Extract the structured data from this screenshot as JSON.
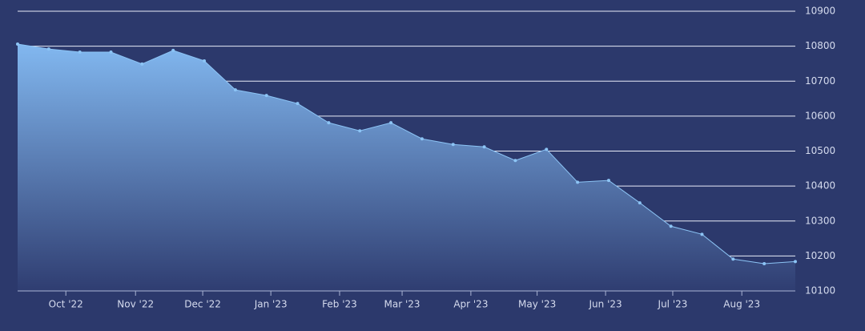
{
  "chart_data": {
    "type": "area",
    "x": [
      0,
      1,
      2,
      3,
      4,
      5,
      6,
      7,
      8,
      9,
      10,
      11,
      12,
      13,
      14,
      15,
      16,
      17,
      18,
      19,
      20,
      21,
      22,
      23,
      24,
      25
    ],
    "series": [
      {
        "color": "#8cc4f5",
        "fill_top": "#82b8f0",
        "fill_bottom": "#2f3d71",
        "values": [
          10806,
          10792,
          10783,
          10783,
          10749,
          10788,
          10758,
          10675,
          10659,
          10636,
          10581,
          10558,
          10581,
          10535,
          10519,
          10512,
          10473,
          10505,
          10411,
          10416,
          10352,
          10285,
          10262,
          10191,
          10178,
          10184
        ]
      }
    ],
    "xlim": [
      0,
      25
    ],
    "xticks": [
      {
        "value": 1.55,
        "label": "Oct '22"
      },
      {
        "value": 3.79,
        "label": "Nov '22"
      },
      {
        "value": 5.95,
        "label": "Dec '22"
      },
      {
        "value": 8.14,
        "label": "Jan '23"
      },
      {
        "value": 10.35,
        "label": "Feb '23"
      },
      {
        "value": 12.36,
        "label": "Mar '23"
      },
      {
        "value": 14.57,
        "label": "Apr '23"
      },
      {
        "value": 16.7,
        "label": "May '23"
      },
      {
        "value": 18.9,
        "label": "Jun '23"
      },
      {
        "value": 21.06,
        "label": "Jul '23"
      },
      {
        "value": 23.28,
        "label": "Aug '23"
      }
    ],
    "ylim": [
      10100,
      10900
    ],
    "yticks": [
      10100,
      10200,
      10300,
      10400,
      10500,
      10600,
      10700,
      10800,
      10900
    ],
    "grid": true,
    "y_axis_side": "right"
  }
}
